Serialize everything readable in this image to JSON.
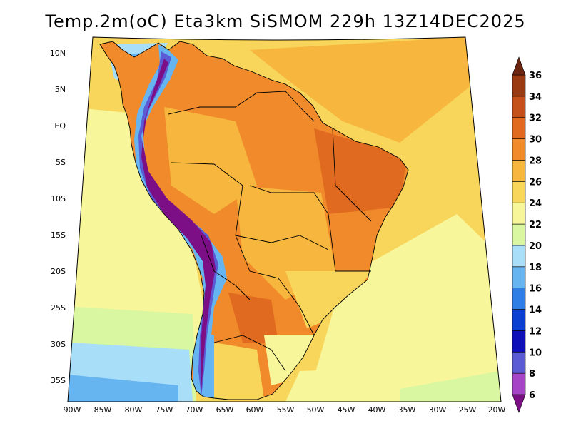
{
  "title": "Temp.2m(oC) Eta3km SiSMOM 229h 13Z14DEC2025",
  "map": {
    "lat_labels": [
      "10N",
      "5N",
      "EQ",
      "5S",
      "10S",
      "15S",
      "20S",
      "25S",
      "30S",
      "35S"
    ],
    "lon_labels": [
      "90W",
      "85W",
      "80W",
      "75W",
      "70W",
      "65W",
      "60W",
      "55W",
      "50W",
      "45W",
      "40W",
      "35W",
      "30W",
      "25W",
      "20W"
    ]
  },
  "colorbar": {
    "levels": [
      "6",
      "8",
      "10",
      "12",
      "14",
      "16",
      "18",
      "20",
      "22",
      "24",
      "26",
      "28",
      "30",
      "32",
      "34",
      "36"
    ],
    "colors": [
      "#7d0f86",
      "#a646c6",
      "#5b5bd6",
      "#1010b8",
      "#0a3fd1",
      "#2f7ee6",
      "#66b4f0",
      "#a8def8",
      "#d8f7a0",
      "#f8f69a",
      "#f7d65b",
      "#f7b63e",
      "#f08a2a",
      "#e06a1f",
      "#c4501c",
      "#9a3a13",
      "#6a2410"
    ]
  },
  "palette": {
    "ocean_base": "#f8f69a",
    "ocean_warm": "#f7d65b",
    "land_hot": "#f08a2a",
    "land_mid": "#f7b63e",
    "andes_cold": "#7d0f86",
    "coast_cool": "#66b4f0"
  }
}
